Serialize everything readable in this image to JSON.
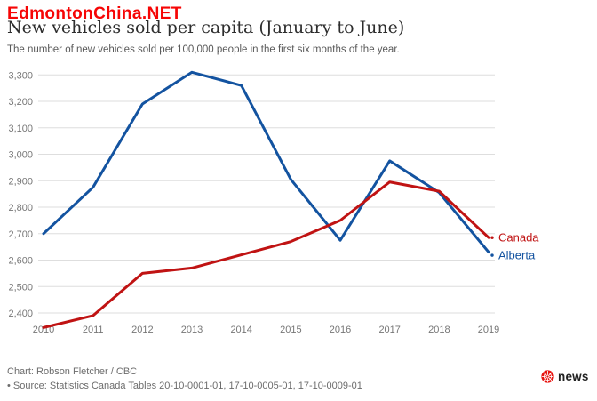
{
  "watermark": {
    "text": "EdmontonChina.NET",
    "color": "#f60505"
  },
  "chart_data": {
    "type": "line",
    "title": "New vehicles sold per capita (January to June)",
    "subtitle": "The number of new vehicles sold per 100,000 people in the first six months of the year.",
    "x": [
      2010,
      2011,
      2012,
      2013,
      2014,
      2015,
      2016,
      2017,
      2018,
      2019
    ],
    "series": [
      {
        "name": "Canada",
        "color": "#c01313",
        "values": [
          2345,
          2390,
          2550,
          2570,
          2620,
          2670,
          2750,
          2895,
          2860,
          2685
        ]
      },
      {
        "name": "Alberta",
        "color": "#1353a0",
        "values": [
          2700,
          2875,
          3190,
          3310,
          3260,
          2905,
          2675,
          2975,
          2855,
          2630
        ]
      }
    ],
    "yticks": [
      2400,
      2500,
      2600,
      2700,
      2800,
      2900,
      3000,
      3100,
      3200,
      3300
    ],
    "ylim": [
      2330,
      3340
    ],
    "xlabel": "",
    "ylabel": "",
    "grid": "horizontal",
    "gridline_color": "#dedede",
    "axis_label_color": "#767676",
    "legend_position": "line-end-labels"
  },
  "footer": {
    "credit": "Chart: Robson Fletcher / CBC",
    "source": "• Source: Statistics Canada Tables 20-10-0001-01, 17-10-0005-01, 17-10-0009-01",
    "brand": "news",
    "logo_color": "#e8130f"
  }
}
